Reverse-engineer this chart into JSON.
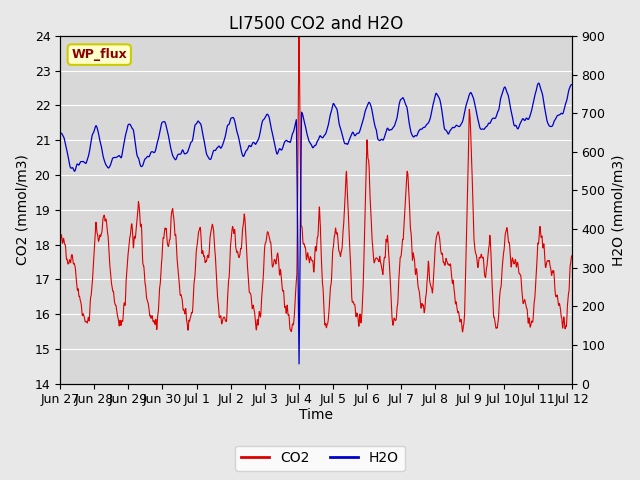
{
  "title": "LI7500 CO2 and H2O",
  "xlabel": "Time",
  "ylabel_left": "CO2 (mmol/m3)",
  "ylabel_right": "H2O (mmol/m3)",
  "ylim_left": [
    14.0,
    24.0
  ],
  "ylim_right": [
    0,
    900
  ],
  "yticks_left": [
    14.0,
    15.0,
    16.0,
    17.0,
    18.0,
    19.0,
    20.0,
    21.0,
    22.0,
    23.0,
    24.0
  ],
  "yticks_right": [
    0,
    100,
    200,
    300,
    400,
    500,
    600,
    700,
    800,
    900
  ],
  "co2_color": "#dd0000",
  "h2o_color": "#0000cc",
  "fig_bg_color": "#e8e8e8",
  "plot_bg_color": "#d8d8d8",
  "grid_color": "#ffffff",
  "annotation_text": "WP_flux",
  "annotation_fg": "#8b0000",
  "annotation_bg": "#ffffcc",
  "annotation_edge": "#cccc00",
  "legend_labels": [
    "CO2",
    "H2O"
  ],
  "title_fontsize": 12,
  "axis_fontsize": 10,
  "tick_fontsize": 9,
  "xtick_labels": [
    "Jun 27",
    "Jun 28",
    "Jun 29",
    "Jun 30",
    "Jul 1",
    "Jul 2",
    "Jul 3",
    "Jul 4",
    "Jul 5",
    "Jul 6",
    "Jul 7",
    "Jul 8",
    "Jul 9",
    "Jul 10",
    "Jul 11",
    "Jul 12"
  ]
}
